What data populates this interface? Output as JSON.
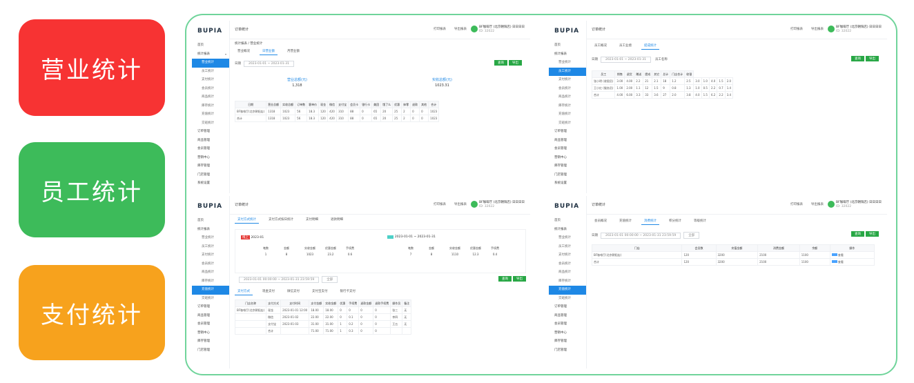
{
  "categories": [
    {
      "label": "营业统计",
      "color": "#f73333"
    },
    {
      "label": "员工统计",
      "color": "#3dbb5a"
    },
    {
      "label": "支付统计",
      "color": "#f7a21d"
    }
  ],
  "screens": {
    "logo": "BUPIA",
    "top_title": "订单统计",
    "top_right_1": "打印报表",
    "top_right_2": "导出报表",
    "shop_name": "BF咖啡厅 (北京朝阳店) 日日日日",
    "shop_sub": "ID: 32022",
    "sidebar": [
      "首页",
      "统计报表",
      "营业统计",
      "员工统计",
      "支付统计",
      "会员统计",
      "商品统计",
      "库存统计",
      "充值统计",
      "交班统计",
      "订单管理",
      "商品管理",
      "会员管理",
      "营销中心",
      "库存管理",
      "门店管理",
      "系统设置"
    ],
    "crumb": "统计报表 / 营业统计",
    "tabs_a": [
      "营业概况",
      "日营业额",
      "月营业额"
    ],
    "filter_label": "日期",
    "date_range": "2023-01-01 ~ 2023-01-31",
    "btn_query": "查询",
    "btn_export": "导出",
    "summary_a": [
      {
        "label": "营业总额(元)",
        "value": "1,318"
      },
      {
        "label": "实收总额(元)",
        "value": "1023.31"
      }
    ],
    "table_a_head": [
      "日期",
      "营业总额",
      "实收总额",
      "订单数",
      "客单价",
      "现金",
      "微信",
      "支付宝",
      "会员卡",
      "银行卡",
      "美团",
      "饿了么",
      "优惠",
      "抹零",
      "退款",
      "其他",
      "合计"
    ],
    "table_a_rows": [
      [
        "BF咖啡厅(北京朝阳店)",
        "1318",
        "1023",
        "56",
        "18.3",
        "120",
        "420",
        "310",
        "88",
        "0",
        "65",
        "20",
        "25",
        "2",
        "0",
        "0",
        "1023"
      ],
      [
        "合计",
        "1318",
        "1023",
        "56",
        "18.3",
        "120",
        "420",
        "310",
        "88",
        "0",
        "65",
        "20",
        "25",
        "2",
        "0",
        "0",
        "1023"
      ]
    ],
    "tabs_b": [
      "员工概况",
      "员工业绩",
      "提成统计"
    ],
    "filter_b": "2023-01-01 ~ 2023-01-31",
    "filter_b_label": "员工名称",
    "table_b_groups": [
      "员工",
      "销售",
      "退货",
      "赠送",
      "提成",
      "其它",
      "总计",
      "门店合计",
      "收银"
    ],
    "table_b_rows": [
      [
        "张小明 (收银员)",
        "3.00",
        "4.00",
        "2.2",
        "21",
        "2.1",
        "18",
        "1.2",
        "2.5",
        "3.0",
        "1.0",
        "4.0",
        "1.5",
        "2.0"
      ],
      [
        "王小红 (服务员)",
        "1.00",
        "2.00",
        "1.1",
        "12",
        "1.5",
        "9",
        "0.8",
        "1.3",
        "1.0",
        "0.5",
        "2.2",
        "0.7",
        "1.4"
      ],
      [
        "合计",
        "4.00",
        "6.00",
        "3.3",
        "33",
        "3.6",
        "27",
        "2.0",
        "3.8",
        "4.0",
        "1.5",
        "6.2",
        "2.2",
        "3.4"
      ]
    ],
    "tabs_c": [
      "支付方式统计",
      "支付方式按日统计",
      "支付明细",
      "退款明细"
    ],
    "card_c_tag": "线上",
    "card_c_title": "2023-01",
    "card_c2_title": "2023-01-01 ~ 2023-01-31",
    "stats_c1": [
      {
        "l": "笔数",
        "v": "1"
      },
      {
        "l": "金额",
        "v": "8"
      },
      {
        "l": "实收金额",
        "v": "1023"
      },
      {
        "l": "优惠金额",
        "v": "23.2"
      },
      {
        "l": "手续费",
        "v": "0.6"
      }
    ],
    "stats_c2": [
      {
        "l": "笔数",
        "v": "7"
      },
      {
        "l": "金额",
        "v": "8"
      },
      {
        "l": "实收金额",
        "v": "1110"
      },
      {
        "l": "优惠金额",
        "v": "12.3"
      },
      {
        "l": "手续费",
        "v": "0.4"
      }
    ],
    "filter_c": "2023-01-01 00:00:00 ~ 2023-01-31 23:59:59",
    "filter_c_sel": "全部",
    "subtabs_c": [
      "支付方式",
      "现金支付",
      "微信支付",
      "支付宝支付",
      "银行卡支付"
    ],
    "table_c_head": [
      "门店名称",
      "支付方式",
      "支付时间",
      "支付金额",
      "实收金额",
      "优惠",
      "手续费",
      "退款金额",
      "退款手续费",
      "操作员",
      "备注"
    ],
    "table_c_rows": [
      [
        "BF咖啡厅(北京朝阳店)",
        "现金",
        "2023-01-01 12:00",
        "18.00",
        "18.00",
        "0",
        "0",
        "0",
        "0",
        "张三",
        "无"
      ],
      [
        "",
        "微信",
        "2023-01-02",
        "22.00",
        "22.00",
        "0",
        "0.1",
        "0",
        "0",
        "李四",
        "无"
      ],
      [
        "",
        "支付宝",
        "2023-01-03",
        "31.00",
        "31.00",
        "1",
        "0.2",
        "0",
        "0",
        "王五",
        "无"
      ],
      [
        "",
        "合计",
        "",
        "71.00",
        "71.00",
        "1",
        "0.3",
        "0",
        "0",
        "",
        ""
      ]
    ],
    "tabs_d": [
      "会员概况",
      "充值统计",
      "消费统计",
      "积分统计",
      "等级统计"
    ],
    "filter_d": "2023-01-01 00:00:00 ~ 2023-01-31 23:59:59",
    "filter_d_sel": "全部",
    "table_d_head": [
      "门店",
      "会员数",
      "充值金额",
      "消费金额",
      "余额",
      "操作"
    ],
    "table_d_rows": [
      [
        "BF咖啡厅(北京朝阳店)",
        "120",
        "3200",
        "2100",
        "1100",
        "查看"
      ],
      [
        "合计",
        "120",
        "3200",
        "2100",
        "1100",
        "查看"
      ]
    ]
  }
}
